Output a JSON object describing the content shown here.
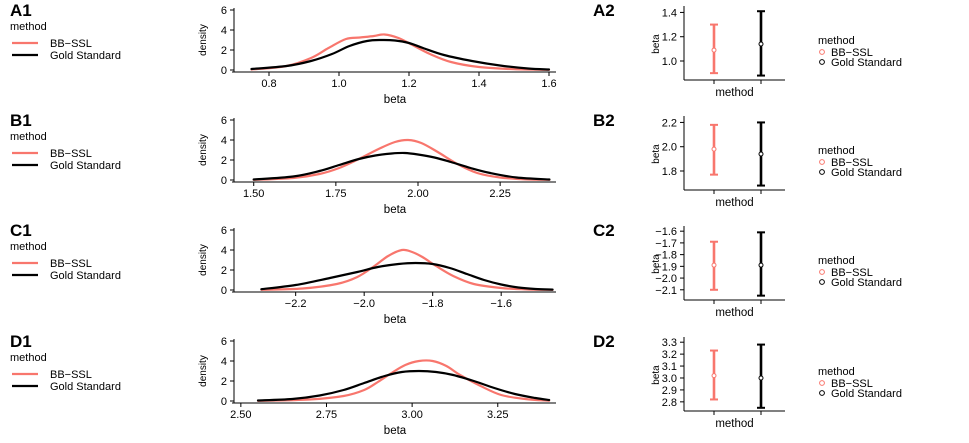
{
  "colors": {
    "bb_ssl": "#F8766D",
    "gold": "#000000"
  },
  "chart_data": [
    {
      "id": "A1",
      "type": "line",
      "label": "A1",
      "xlabel": "beta",
      "ylabel": "density",
      "xlim": [
        0.7,
        1.62
      ],
      "ylim": [
        0,
        6
      ],
      "xticks": [
        0.8,
        1.0,
        1.2,
        1.4,
        1.6
      ],
      "xtick_labels": [
        "0.8",
        "1.0",
        "1.2",
        "1.4",
        "1.6"
      ],
      "yticks": [
        0,
        2,
        4,
        6
      ],
      "ytick_labels": [
        "0",
        "2",
        "4",
        "6"
      ],
      "legend": {
        "title": "method",
        "entries": [
          "BB−SSL",
          "Gold Standard"
        ],
        "position": "left"
      },
      "series": [
        {
          "name": "BB−SSL",
          "color": "#F8766D",
          "x": [
            0.75,
            0.85,
            0.92,
            0.97,
            1.02,
            1.06,
            1.1,
            1.13,
            1.17,
            1.21,
            1.26,
            1.32,
            1.4,
            1.5,
            1.6
          ],
          "y": [
            0.05,
            0.4,
            1.2,
            2.2,
            3.1,
            3.25,
            3.4,
            3.55,
            3.2,
            2.5,
            1.6,
            0.8,
            0.3,
            0.08,
            0.02
          ]
        },
        {
          "name": "Gold Standard",
          "color": "#000000",
          "x": [
            0.75,
            0.85,
            0.92,
            0.98,
            1.03,
            1.08,
            1.12,
            1.16,
            1.2,
            1.24,
            1.3,
            1.38,
            1.46,
            1.54,
            1.6
          ],
          "y": [
            0.1,
            0.4,
            0.9,
            1.6,
            2.4,
            2.9,
            3.0,
            2.95,
            2.7,
            2.2,
            1.5,
            0.9,
            0.45,
            0.15,
            0.05
          ]
        }
      ]
    },
    {
      "id": "A2",
      "type": "errorbar",
      "label": "A2",
      "xlabel": "method",
      "ylabel": "beta",
      "ylim": [
        0.86,
        1.42
      ],
      "yticks": [
        1.0,
        1.2,
        1.4
      ],
      "ytick_labels": [
        "1.0",
        "1.2",
        "1.4"
      ],
      "legend": {
        "title": "method",
        "entries": [
          "BB−SSL",
          "Gold Standard"
        ],
        "position": "right"
      },
      "series": [
        {
          "name": "BB−SSL",
          "color": "#F8766D",
          "center": 1.09,
          "low": 0.9,
          "high": 1.3
        },
        {
          "name": "Gold Standard",
          "color": "#000000",
          "center": 1.14,
          "low": 0.88,
          "high": 1.41
        }
      ]
    },
    {
      "id": "B1",
      "type": "line",
      "label": "B1",
      "xlabel": "beta",
      "ylabel": "density",
      "xlim": [
        1.44,
        2.42
      ],
      "ylim": [
        0,
        6
      ],
      "xticks": [
        1.5,
        1.75,
        2.0,
        2.25
      ],
      "xtick_labels": [
        "1.50",
        "1.75",
        "2.00",
        "2.25"
      ],
      "yticks": [
        0,
        2,
        4,
        6
      ],
      "ytick_labels": [
        "0",
        "2",
        "4",
        "6"
      ],
      "legend": {
        "title": "method",
        "entries": [
          "BB−SSL",
          "Gold Standard"
        ],
        "position": "left"
      },
      "series": [
        {
          "name": "BB−SSL",
          "color": "#F8766D",
          "x": [
            1.5,
            1.62,
            1.7,
            1.76,
            1.82,
            1.88,
            1.93,
            1.97,
            2.01,
            2.06,
            2.12,
            2.18,
            2.25,
            2.33,
            2.4
          ],
          "y": [
            0.02,
            0.2,
            0.6,
            1.2,
            2.1,
            3.1,
            3.8,
            4.0,
            3.7,
            2.8,
            1.6,
            0.7,
            0.25,
            0.06,
            0.02
          ]
        },
        {
          "name": "Gold Standard",
          "color": "#000000",
          "x": [
            1.5,
            1.62,
            1.7,
            1.76,
            1.82,
            1.87,
            1.92,
            1.96,
            2.0,
            2.05,
            2.1,
            2.16,
            2.22,
            2.3,
            2.4
          ],
          "y": [
            0.05,
            0.35,
            0.9,
            1.5,
            2.1,
            2.45,
            2.65,
            2.7,
            2.55,
            2.25,
            1.8,
            1.2,
            0.7,
            0.25,
            0.05
          ]
        }
      ]
    },
    {
      "id": "B2",
      "type": "errorbar",
      "label": "B2",
      "xlabel": "method",
      "ylabel": "beta",
      "ylim": [
        1.66,
        2.22
      ],
      "yticks": [
        1.8,
        2.0,
        2.2
      ],
      "ytick_labels": [
        "1.8",
        "2.0",
        "2.2"
      ],
      "legend": {
        "title": "method",
        "entries": [
          "BB−SSL",
          "Gold Standard"
        ],
        "position": "right"
      },
      "series": [
        {
          "name": "BB−SSL",
          "color": "#F8766D",
          "center": 1.98,
          "low": 1.77,
          "high": 2.18
        },
        {
          "name": "Gold Standard",
          "color": "#000000",
          "center": 1.94,
          "low": 1.68,
          "high": 2.2
        }
      ]
    },
    {
      "id": "C1",
      "type": "line",
      "label": "C1",
      "xlabel": "beta",
      "ylabel": "density",
      "xlim": [
        -2.38,
        -1.44
      ],
      "ylim": [
        0,
        6
      ],
      "xticks": [
        -2.2,
        -2.0,
        -1.8,
        -1.6
      ],
      "xtick_labels": [
        "−2.2",
        "−2.0",
        "−1.8",
        "−1.6"
      ],
      "yticks": [
        0,
        2,
        4,
        6
      ],
      "ytick_labels": [
        "0",
        "2",
        "4",
        "6"
      ],
      "legend": {
        "title": "method",
        "entries": [
          "BB−SSL",
          "Gold Standard"
        ],
        "position": "left"
      },
      "series": [
        {
          "name": "BB−SSL",
          "color": "#F8766D",
          "x": [
            -2.3,
            -2.18,
            -2.08,
            -2.02,
            -1.97,
            -1.93,
            -1.89,
            -1.86,
            -1.83,
            -1.79,
            -1.74,
            -1.68,
            -1.6,
            -1.52,
            -1.45
          ],
          "y": [
            0.02,
            0.15,
            0.6,
            1.3,
            2.4,
            3.4,
            4.0,
            3.8,
            3.3,
            2.4,
            1.4,
            0.6,
            0.2,
            0.05,
            0.02
          ]
        },
        {
          "name": "Gold Standard",
          "color": "#000000",
          "x": [
            -2.3,
            -2.2,
            -2.1,
            -2.02,
            -1.96,
            -1.9,
            -1.85,
            -1.8,
            -1.75,
            -1.7,
            -1.65,
            -1.6,
            -1.55,
            -1.5,
            -1.45
          ],
          "y": [
            0.08,
            0.5,
            1.2,
            1.8,
            2.3,
            2.6,
            2.7,
            2.6,
            2.2,
            1.6,
            1.0,
            0.55,
            0.25,
            0.1,
            0.04
          ]
        }
      ]
    },
    {
      "id": "C2",
      "type": "errorbar",
      "label": "C2",
      "xlabel": "method",
      "ylabel": "beta",
      "ylim": [
        -2.17,
        -1.59
      ],
      "yticks": [
        -2.1,
        -2.0,
        -1.9,
        -1.8,
        -1.7,
        -1.6
      ],
      "ytick_labels": [
        "−2.1",
        "−2.0",
        "−1.9",
        "−1.8",
        "−1.7",
        "−1.6"
      ],
      "legend": {
        "title": "method",
        "entries": [
          "BB−SSL",
          "Gold Standard"
        ],
        "position": "right"
      },
      "series": [
        {
          "name": "BB−SSL",
          "color": "#F8766D",
          "center": -1.89,
          "low": -2.1,
          "high": -1.69
        },
        {
          "name": "Gold Standard",
          "color": "#000000",
          "center": -1.89,
          "low": -2.15,
          "high": -1.61
        }
      ]
    },
    {
      "id": "D1",
      "type": "line",
      "label": "D1",
      "xlabel": "beta",
      "ylabel": "density",
      "xlim": [
        2.48,
        3.42
      ],
      "ylim": [
        0,
        6
      ],
      "xticks": [
        2.5,
        2.75,
        3.0,
        3.25
      ],
      "xtick_labels": [
        "2.50",
        "2.75",
        "3.00",
        "3.25"
      ],
      "yticks": [
        0,
        2,
        4,
        6
      ],
      "ytick_labels": [
        "0",
        "2",
        "4",
        "6"
      ],
      "legend": {
        "title": "method",
        "entries": [
          "BB−SSL",
          "Gold Standard"
        ],
        "position": "left"
      },
      "series": [
        {
          "name": "BB−SSL",
          "color": "#F8766D",
          "x": [
            2.55,
            2.7,
            2.8,
            2.86,
            2.9,
            2.94,
            2.98,
            3.02,
            3.06,
            3.1,
            3.14,
            3.2,
            3.26,
            3.33,
            3.4
          ],
          "y": [
            0.02,
            0.15,
            0.5,
            1.1,
            1.9,
            2.8,
            3.6,
            4.0,
            4.0,
            3.5,
            2.6,
            1.5,
            0.6,
            0.2,
            0.03
          ]
        },
        {
          "name": "Gold Standard",
          "color": "#000000",
          "x": [
            2.55,
            2.65,
            2.73,
            2.8,
            2.86,
            2.92,
            2.97,
            3.02,
            3.07,
            3.12,
            3.18,
            3.24,
            3.3,
            3.36,
            3.4
          ],
          "y": [
            0.05,
            0.2,
            0.55,
            1.1,
            1.8,
            2.5,
            2.9,
            3.0,
            2.9,
            2.6,
            2.0,
            1.3,
            0.7,
            0.3,
            0.1
          ]
        }
      ]
    },
    {
      "id": "D2",
      "type": "errorbar",
      "label": "D2",
      "xlabel": "method",
      "ylabel": "beta",
      "ylim": [
        2.74,
        3.31
      ],
      "yticks": [
        2.8,
        2.9,
        3.0,
        3.1,
        3.2,
        3.3
      ],
      "ytick_labels": [
        "2.8",
        "2.9",
        "3.0",
        "3.1",
        "3.2",
        "3.3"
      ],
      "legend": {
        "title": "method",
        "entries": [
          "BB−SSL",
          "Gold Standard"
        ],
        "position": "right"
      },
      "series": [
        {
          "name": "BB−SSL",
          "color": "#F8766D",
          "center": 3.02,
          "low": 2.82,
          "high": 3.23
        },
        {
          "name": "Gold Standard",
          "color": "#000000",
          "center": 3.0,
          "low": 2.75,
          "high": 3.28
        }
      ]
    }
  ]
}
